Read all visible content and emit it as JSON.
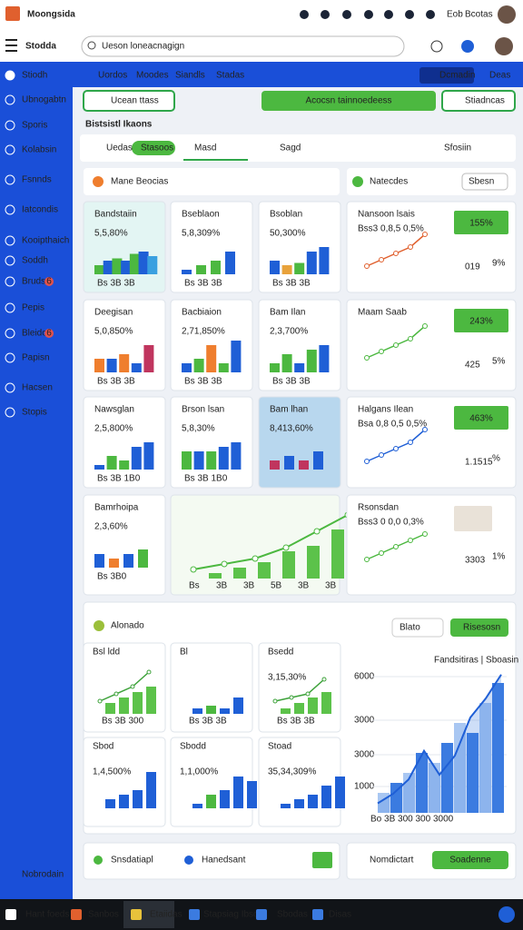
{
  "top_bar": {
    "title": "Moongsida",
    "user": "Bcotas",
    "item": "Eob"
  },
  "app_bar": {
    "title": "Stodda",
    "search": "Ueson loneacnagign"
  },
  "sidebar": {
    "items": [
      {
        "label": "Stiodh"
      },
      {
        "label": "Ubnogabtn"
      },
      {
        "label": "Sporis"
      },
      {
        "label": "Kolabsin"
      },
      {
        "label": "Fsnnds"
      },
      {
        "label": "Iatcondis"
      },
      {
        "label": "Kooipthaich"
      },
      {
        "label": "Soddh"
      },
      {
        "label": "Bruds",
        "badge": "6"
      },
      {
        "label": "Pepis"
      },
      {
        "label": "Bleido",
        "badge": "6"
      },
      {
        "label": "Papisn"
      },
      {
        "label": "Hacsen"
      },
      {
        "label": "Stopis"
      }
    ],
    "footer": "Nobrodain"
  },
  "subnav": {
    "items": [
      "Uordos",
      "Moodes",
      "Siandls",
      "Stadas"
    ],
    "button": "Dcmadin",
    "link": "Deas"
  },
  "toolbar": {
    "left": "Ucean ttass",
    "center": "Acocsn tainnoedeess",
    "right": "Stiadncas"
  },
  "section": {
    "title": "Bistsistl Ikaons",
    "tabs": [
      "Uedas",
      "Stasoos",
      "Masd",
      "Sagd",
      "Sfosiin"
    ]
  },
  "panel_left": {
    "title": "Mane Beocias"
  },
  "panel_right": {
    "title": "Natecdes",
    "select": "Sbesn"
  },
  "cards": [
    {
      "title": "Bandstaiin",
      "value_label": "5,5,80%",
      "value_color": "#3bb58a",
      "bg": "#e3f5f3",
      "values": [
        2,
        3,
        3.5,
        3,
        4.5,
        5,
        4
      ],
      "colors": [
        "#4cb840",
        "#1f5fd6",
        "#4cb840",
        "#1f5fd6",
        "#4cb840",
        "#1f5fd6",
        "#3aa0e0"
      ],
      "x_labels": "Bs 3B 3B"
    },
    {
      "title": "Bseblaon",
      "value_label": "5,8,309%",
      "value_color": "#4cb840",
      "values": [
        1,
        2,
        3,
        5
      ],
      "colors": [
        "#1f5fd6",
        "#4cb840",
        "#4cb840",
        "#1f5fd6"
      ],
      "x_labels": "Bs 3B 3B"
    },
    {
      "title": "Bsoblan",
      "value_label": "50,300%",
      "value_color": "#4cb840",
      "values": [
        3,
        2,
        2.5,
        5,
        6
      ],
      "colors": [
        "#1f5fd6",
        "#e8a23b",
        "#4cb840",
        "#1f5fd6",
        "#1f5fd6"
      ],
      "x_labels": "Bs 3B 3B"
    },
    {
      "title": "Deegisan",
      "value_label": "5,0,850%",
      "value_color": "#888888",
      "values": [
        3,
        3,
        4,
        2,
        6
      ],
      "colors": [
        "#ef7e2e",
        "#1f5fd6",
        "#ef7e2e",
        "#1f5fd6",
        "#c0355e"
      ],
      "x_labels": "Bs 3B 3B"
    },
    {
      "title": "Bacbiaion",
      "value_label": "2,71,850%",
      "value_color": "#4cb840",
      "values": [
        2,
        3,
        6,
        2,
        7
      ],
      "colors": [
        "#1f5fd6",
        "#4cb840",
        "#ef7e2e",
        "#4cb840",
        "#1f5fd6"
      ],
      "x_labels": "Bs 3B 3B"
    },
    {
      "title": "Bam Ilan",
      "value_label": "2,3,700%",
      "value_color": "#e8c23b",
      "values": [
        2,
        4,
        2,
        5,
        6
      ],
      "colors": [
        "#4cb840",
        "#4cb840",
        "#1f5fd6",
        "#4cb840",
        "#1f5fd6"
      ],
      "x_labels": "Bs 3B 3B"
    },
    {
      "title": "Nawsglan",
      "value_label": "2,5,800%",
      "value_color": "#888888",
      "values": [
        1,
        3,
        2,
        5,
        6
      ],
      "colors": [
        "#1f5fd6",
        "#4cb840",
        "#4cb840",
        "#1f5fd6",
        "#1f5fd6"
      ],
      "x_labels": "Bs 3B 1B0"
    },
    {
      "title": "Brson lsan",
      "value_label": "5,8,30%",
      "value_color": "#888888",
      "values": [
        4,
        4,
        4,
        5,
        6
      ],
      "colors": [
        "#4cb840",
        "#1f5fd6",
        "#4cb840",
        "#1f5fd6",
        "#1f5fd6"
      ],
      "x_labels": "Bs 3B 1B0"
    },
    {
      "title": "Bam lhan",
      "value_label": "8,413,60%",
      "value_color": "#4cb840",
      "bg": "#b8d7ee",
      "values": [
        2,
        3,
        2,
        4
      ],
      "colors": [
        "#c0355e",
        "#1f5fd6",
        "#c0355e",
        "#1f5fd6"
      ],
      "x_labels": ""
    },
    {
      "title": "Bamrhoipa",
      "value_label": "2,3,60%",
      "value_color": "#888888",
      "values": [
        3,
        2,
        3,
        4
      ],
      "colors": [
        "#1f5fd6",
        "#ef7e2e",
        "#1f5fd6",
        "#4cb840"
      ],
      "x_labels": "Bs 3B0"
    }
  ],
  "big_line": {
    "line": [
      1,
      2,
      3,
      5,
      8,
      11
    ],
    "values": [
      1,
      2,
      3,
      5,
      6,
      9
    ],
    "x_labels": [
      "Bs",
      "3B",
      "3B",
      "5B",
      "3B",
      "3B"
    ]
  },
  "right_cards": [
    {
      "title": "Nansoon lsais",
      "badge": "155%",
      "note": "Bss3 0,8,5 0,5%",
      "line": [
        1,
        2,
        3,
        4,
        6
      ],
      "line_color": "#e0602e",
      "number": "019",
      "sub": "9%",
      "number_color": "#d9342b"
    },
    {
      "title": "Maam Saab",
      "badge": "243%",
      "note": "",
      "line": [
        2,
        3,
        4,
        5,
        7
      ],
      "line_color": "#4cb840",
      "number": "425",
      "sub": "5%",
      "number_color": "#d9342b"
    },
    {
      "title": "Halgans Ilean",
      "badge": "463%",
      "note": "Bsa 0,8 0,5 0,5%",
      "line": [
        1,
        2,
        3,
        4,
        6
      ],
      "line_color": "#1f5fd6",
      "number": "1.1515",
      "sub": "%",
      "number_color": "#4cb840"
    },
    {
      "title": "Rsonsdan",
      "badge": "",
      "note": "Bss3 0 0,0 0,3%",
      "line": [
        1,
        2,
        3,
        4,
        5
      ],
      "line_color": "#4cb840",
      "number": "3303",
      "sub": "1%",
      "number_color": "#d9342b"
    }
  ],
  "lower": {
    "title": "Alonado",
    "select": "Blato",
    "button": "Risesosn",
    "cards": [
      {
        "title": "Bsl ldd",
        "value_label": "",
        "values": [
          2,
          3,
          4,
          5
        ],
        "line": [
          1,
          2,
          3,
          5
        ],
        "x_labels": "Bs 3B 300"
      },
      {
        "title": "Bl",
        "value_label": "",
        "values": [
          1,
          1.5,
          1,
          3
        ],
        "line": [],
        "x_labels": "Bs 3B 3B"
      },
      {
        "title": "Bsedd",
        "value_label": "3,15,30%",
        "values": [
          1,
          2,
          3,
          4
        ],
        "line": [
          1,
          1.5,
          2,
          4
        ],
        "x_labels": "Bs 3B 3B"
      },
      {
        "title": "Sbod",
        "value_label": "1,4,500%",
        "values": [
          2,
          3,
          4,
          8
        ],
        "line": [],
        "x_labels": ""
      },
      {
        "title": "Sbodd",
        "value_label": "1,1,000%",
        "values": [
          1,
          3,
          4,
          7,
          6
        ],
        "line": [],
        "x_labels": ""
      },
      {
        "title": "Stoad",
        "value_label": "35,34,309%",
        "values": [
          1,
          2,
          3,
          5,
          7
        ],
        "line": [],
        "x_labels": ""
      }
    ],
    "chart": {
      "legend": "Fandsitiras | Sboasin",
      "y_labels": [
        "6000",
        "3000",
        "3000",
        "1000"
      ],
      "x_labels": "Bo 3B 300 300 3000",
      "values": [
        2,
        3,
        4,
        6,
        5,
        7,
        9,
        8,
        11,
        13
      ],
      "line": [
        1,
        2,
        3.5,
        6.5,
        4,
        6,
        10,
        12,
        14.5
      ]
    }
  },
  "footer_cards": {
    "left_a": "Snsdatiapl",
    "left_b": "Hanedsant",
    "right": "Nomdictart",
    "button": "Soadenne"
  },
  "taskbar": {
    "items": [
      "Hant foeds",
      "Sanbos",
      "Etaiidas",
      "Stapsiag Ibsoss",
      "Sbodas",
      "Disas"
    ]
  }
}
